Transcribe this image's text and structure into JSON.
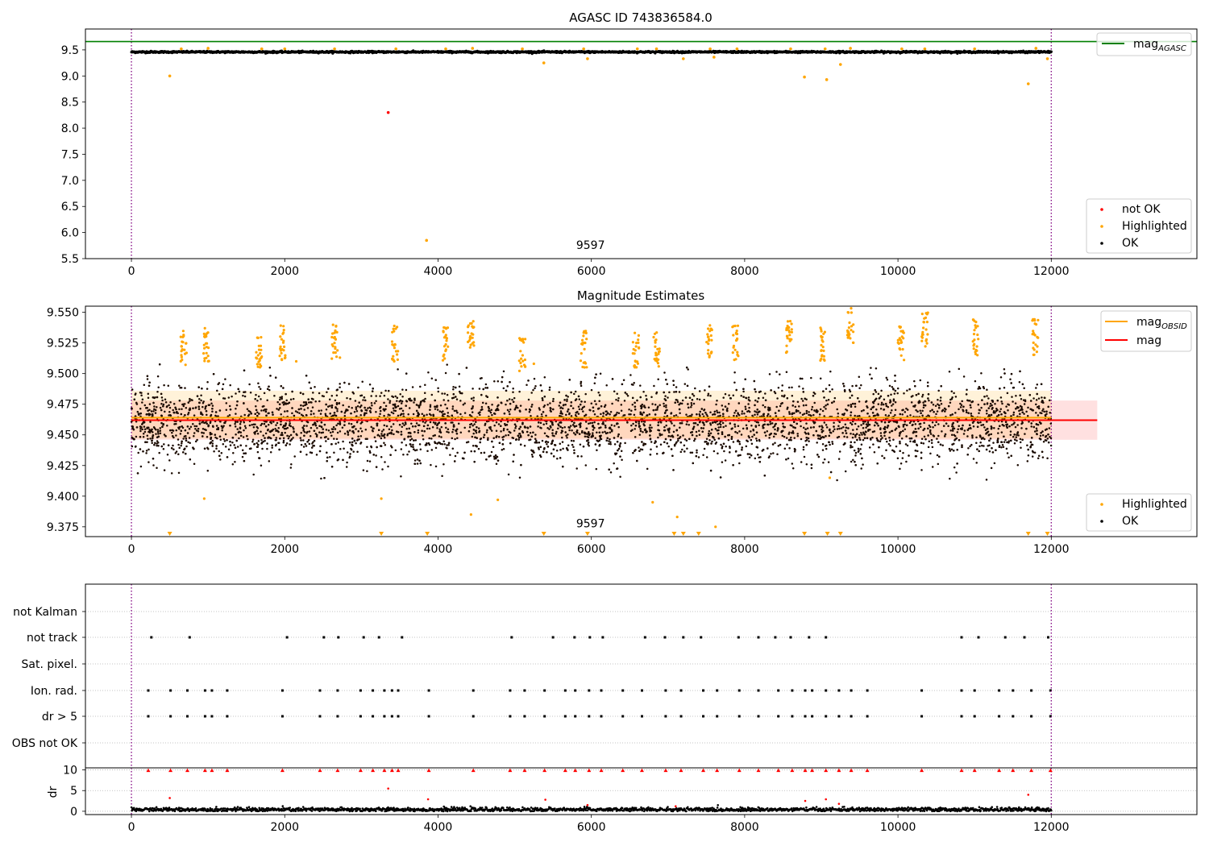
{
  "chart_data": [
    {
      "type": "scatter",
      "title": "AGASC ID 743836584.0",
      "xlim": [
        -600,
        13900
      ],
      "ylim": [
        5.5,
        9.9
      ],
      "xticks": [
        0,
        2000,
        4000,
        6000,
        8000,
        10000,
        12000
      ],
      "yticks": [
        5.5,
        6.0,
        6.5,
        7.0,
        7.5,
        8.0,
        8.5,
        9.0,
        9.5
      ],
      "ytick_labels": [
        "5.5",
        "6.0",
        "6.5",
        "7.0",
        "7.5",
        "8.0",
        "8.5",
        "9.0",
        "9.5"
      ],
      "vlines": [
        0,
        12000
      ],
      "hline": {
        "name": "mag",
        "subscript": "AGASC",
        "value": 9.66,
        "color": "#008000"
      },
      "annotation": {
        "text": "9597",
        "x": 6000,
        "y": 5.62
      },
      "legend_upper": "top-right",
      "legend_lower": "bottom-right",
      "series": [
        {
          "name": "not OK",
          "color": "#ff0000",
          "points": [
            [
              3350,
              8.3
            ]
          ]
        },
        {
          "name": "Highlighted",
          "color": "#ffa500",
          "points": [
            [
              500,
              9.0
            ],
            [
              3850,
              5.85
            ],
            [
              5380,
              9.25
            ],
            [
              5950,
              9.33
            ],
            [
              7200,
              9.33
            ],
            [
              7600,
              9.36
            ],
            [
              8780,
              8.98
            ],
            [
              9070,
              8.93
            ],
            [
              9250,
              9.22
            ],
            [
              11700,
              8.85
            ],
            [
              11950,
              9.33
            ],
            [
              650,
              9.52
            ],
            [
              1000,
              9.53
            ],
            [
              1700,
              9.52
            ],
            [
              2000,
              9.52
            ],
            [
              2650,
              9.52
            ],
            [
              3450,
              9.52
            ],
            [
              4100,
              9.52
            ],
            [
              4450,
              9.53
            ],
            [
              5100,
              9.52
            ],
            [
              5900,
              9.52
            ],
            [
              6600,
              9.52
            ],
            [
              6850,
              9.52
            ],
            [
              7550,
              9.52
            ],
            [
              7900,
              9.52
            ],
            [
              8600,
              9.52
            ],
            [
              9050,
              9.52
            ],
            [
              9380,
              9.53
            ],
            [
              10050,
              9.52
            ],
            [
              10350,
              9.52
            ],
            [
              11000,
              9.52
            ],
            [
              11800,
              9.53
            ]
          ]
        },
        {
          "name": "OK",
          "color": "#000000",
          "center": 9.46,
          "band": [
            9.43,
            9.49
          ]
        }
      ]
    },
    {
      "type": "scatter",
      "title": "Magnitude Estimates",
      "xlim": [
        -600,
        13900
      ],
      "ylim": [
        9.367,
        9.555
      ],
      "xticks": [
        0,
        2000,
        4000,
        6000,
        8000,
        10000,
        12000
      ],
      "yticks": [
        9.375,
        9.4,
        9.425,
        9.45,
        9.475,
        9.5,
        9.525,
        9.55
      ],
      "ytick_labels": [
        "9.375",
        "9.400",
        "9.425",
        "9.450",
        "9.475",
        "9.500",
        "9.525",
        "9.550"
      ],
      "vlines": [
        0,
        12000
      ],
      "annotation": {
        "text": "9597",
        "x": 6000,
        "y": 9.372
      },
      "mag_line": {
        "name": "mag",
        "value": 9.462,
        "band": [
          9.446,
          9.478
        ],
        "x": [
          0,
          12600
        ],
        "color": "#ff0000"
      },
      "obsid_line": {
        "name": "mag",
        "subscript": "OBSID",
        "value": 9.464,
        "band": [
          9.447,
          9.486
        ],
        "x": [
          0,
          12000
        ],
        "color": "#ffa500"
      },
      "legend_upper": "top-right",
      "legend_lower": "bottom-right",
      "series": [
        {
          "name": "Highlighted",
          "color": "#ffa500",
          "clusters": [
            [
              680,
              9.52
            ],
            [
              980,
              9.525
            ],
            [
              1660,
              9.52
            ],
            [
              1970,
              9.525
            ],
            [
              2650,
              9.525
            ],
            [
              3440,
              9.525
            ],
            [
              4100,
              9.525
            ],
            [
              4430,
              9.53
            ],
            [
              5100,
              9.515
            ],
            [
              5900,
              9.52
            ],
            [
              6580,
              9.52
            ],
            [
              6850,
              9.52
            ],
            [
              7540,
              9.525
            ],
            [
              7880,
              9.525
            ],
            [
              8580,
              9.53
            ],
            [
              9020,
              9.525
            ],
            [
              9380,
              9.54
            ],
            [
              10040,
              9.525
            ],
            [
              10350,
              9.535
            ],
            [
              11010,
              9.53
            ],
            [
              11790,
              9.53
            ]
          ],
          "outliers": [
            [
              950,
              9.398
            ],
            [
              3260,
              9.398
            ],
            [
              4430,
              9.385
            ],
            [
              4780,
              9.397
            ],
            [
              6800,
              9.395
            ],
            [
              7120,
              9.383
            ],
            [
              9110,
              9.415
            ],
            [
              7620,
              9.375
            ],
            [
              2150,
              9.51
            ],
            [
              2720,
              9.513
            ],
            [
              5250,
              9.508
            ]
          ],
          "floor_markers": [
            500,
            3260,
            3860,
            5380,
            5950,
            7080,
            7200,
            7400,
            8780,
            9080,
            9250,
            11700,
            11950
          ]
        },
        {
          "name": "OK",
          "color": "#000000",
          "center": 9.46,
          "spread": 0.016
        }
      ]
    },
    {
      "type": "scatter",
      "xlim": [
        -600,
        13900
      ],
      "xticks": [
        0,
        2000,
        4000,
        6000,
        8000,
        10000,
        12000
      ],
      "vlines": [
        0,
        12000
      ],
      "categories": [
        "not Kalman",
        "not track",
        "Sat. pixel.",
        "Ion. rad.",
        "dr > 5",
        "OBS not OK"
      ],
      "flags": {
        "not track": [
          260,
          760,
          2030,
          2510,
          2700,
          3030,
          3230,
          3530,
          4960,
          5500,
          5780,
          5980,
          6150,
          6700,
          6960,
          7200,
          7430,
          7920,
          8180,
          8400,
          8600,
          8840,
          9060,
          10830,
          11050,
          11400,
          11650,
          11960
        ],
        "Ion. rad.": [
          220,
          510,
          730,
          960,
          1050,
          1250,
          1970,
          2460,
          2690,
          2990,
          3150,
          3300,
          3400,
          3480,
          3880,
          4460,
          4940,
          5130,
          5390,
          5660,
          5790,
          5970,
          6130,
          6410,
          6660,
          6970,
          7170,
          7460,
          7640,
          7930,
          8180,
          8440,
          8620,
          8790,
          8880,
          9060,
          9230,
          9390,
          9600,
          10310,
          10830,
          11000,
          11320,
          11500,
          11740,
          11990
        ],
        "dr > 5": [
          220,
          510,
          730,
          960,
          1050,
          1250,
          1970,
          2460,
          2690,
          2990,
          3150,
          3300,
          3400,
          3480,
          3880,
          4460,
          4940,
          5130,
          5390,
          5660,
          5790,
          5970,
          6130,
          6410,
          6660,
          6970,
          7170,
          7460,
          7640,
          7930,
          8180,
          8440,
          8620,
          8790,
          8880,
          9060,
          9230,
          9390,
          9600,
          10310,
          10830,
          11000,
          11320,
          11500,
          11740,
          11990
        ]
      }
    },
    {
      "type": "scatter",
      "ylabel": "dr",
      "xlim": [
        -600,
        13900
      ],
      "ylim": [
        -0.8,
        10.5
      ],
      "xticks": [
        0,
        2000,
        4000,
        6000,
        8000,
        10000,
        12000
      ],
      "yticks": [
        0,
        5,
        10
      ],
      "vlines": [
        0,
        12000
      ],
      "grid": "horizontal dotted",
      "series": [
        {
          "name": "dr",
          "color": "#000000",
          "center": 0.4
        },
        {
          "name": "dr > 5",
          "color": "#ff0000",
          "clipped_value": 9.9,
          "points": [
            [
              500,
              3.2
            ],
            [
              3350,
              5.5
            ],
            [
              11700,
              4.0
            ],
            [
              5400,
              2.8
            ],
            [
              3870,
              2.9
            ],
            [
              5950,
              1.5
            ],
            [
              8790,
              2.5
            ],
            [
              9060,
              2.9
            ],
            [
              9230,
              1.8
            ],
            [
              7100,
              1.2
            ]
          ]
        }
      ]
    }
  ]
}
